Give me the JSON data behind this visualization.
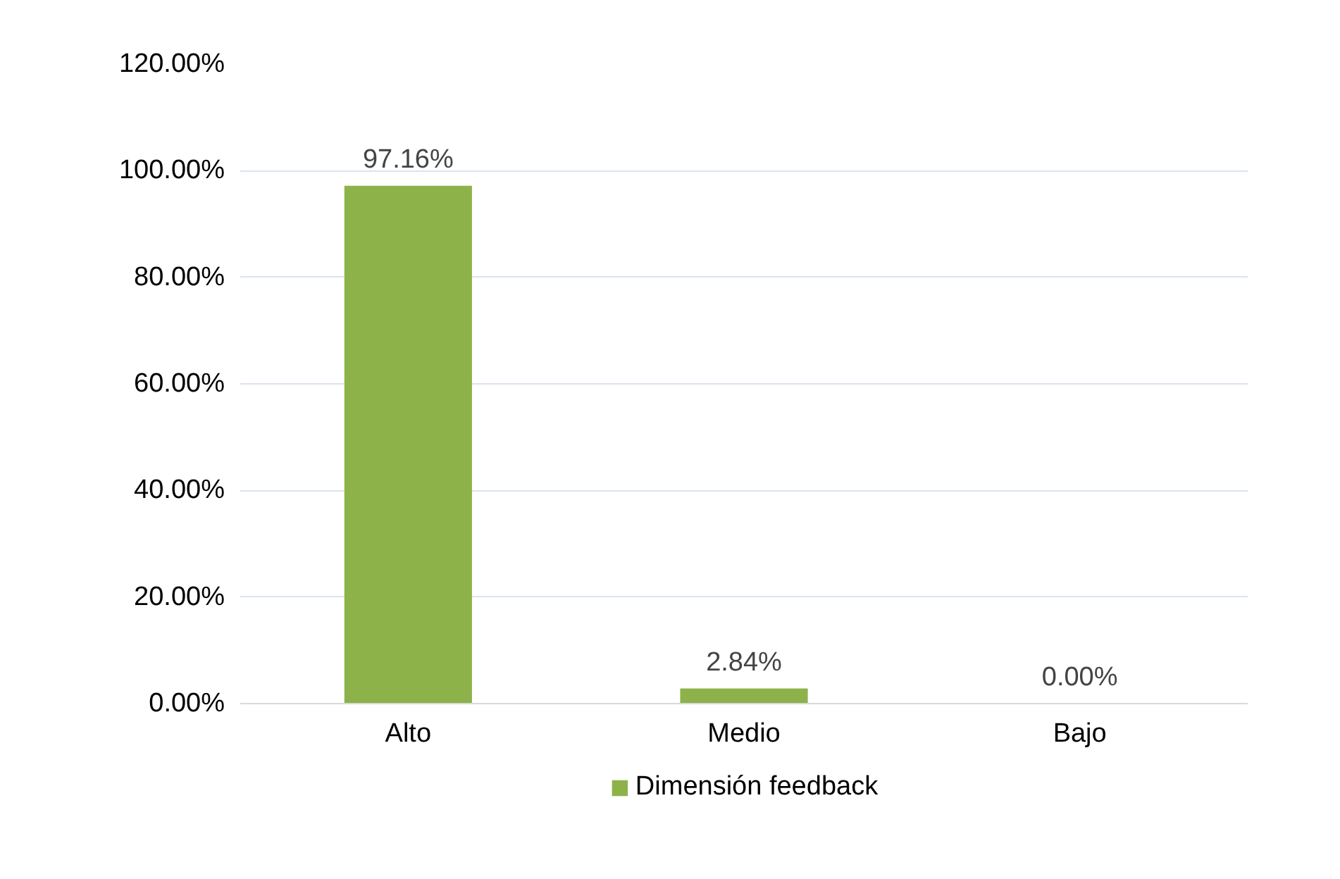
{
  "chart_data": {
    "type": "bar",
    "categories": [
      "Alto",
      "Medio",
      "Bajo"
    ],
    "series": [
      {
        "name": "Dimensión feedback",
        "color": "#8db24a",
        "values": [
          97.16,
          2.84,
          0.0
        ]
      }
    ],
    "value_labels": [
      "97.16%",
      "2.84%",
      "0.00%"
    ],
    "ylim": [
      0,
      120
    ],
    "yticks": [
      {
        "value": 0,
        "label": "0.00%"
      },
      {
        "value": 20,
        "label": "20.00%"
      },
      {
        "value": 40,
        "label": "40.00%"
      },
      {
        "value": 60,
        "label": "60.00%"
      },
      {
        "value": 80,
        "label": "80.00%"
      },
      {
        "value": 100,
        "label": "100.00%"
      },
      {
        "value": 120,
        "label": "120.00%"
      }
    ],
    "grid": "y",
    "legend": "bottom"
  }
}
